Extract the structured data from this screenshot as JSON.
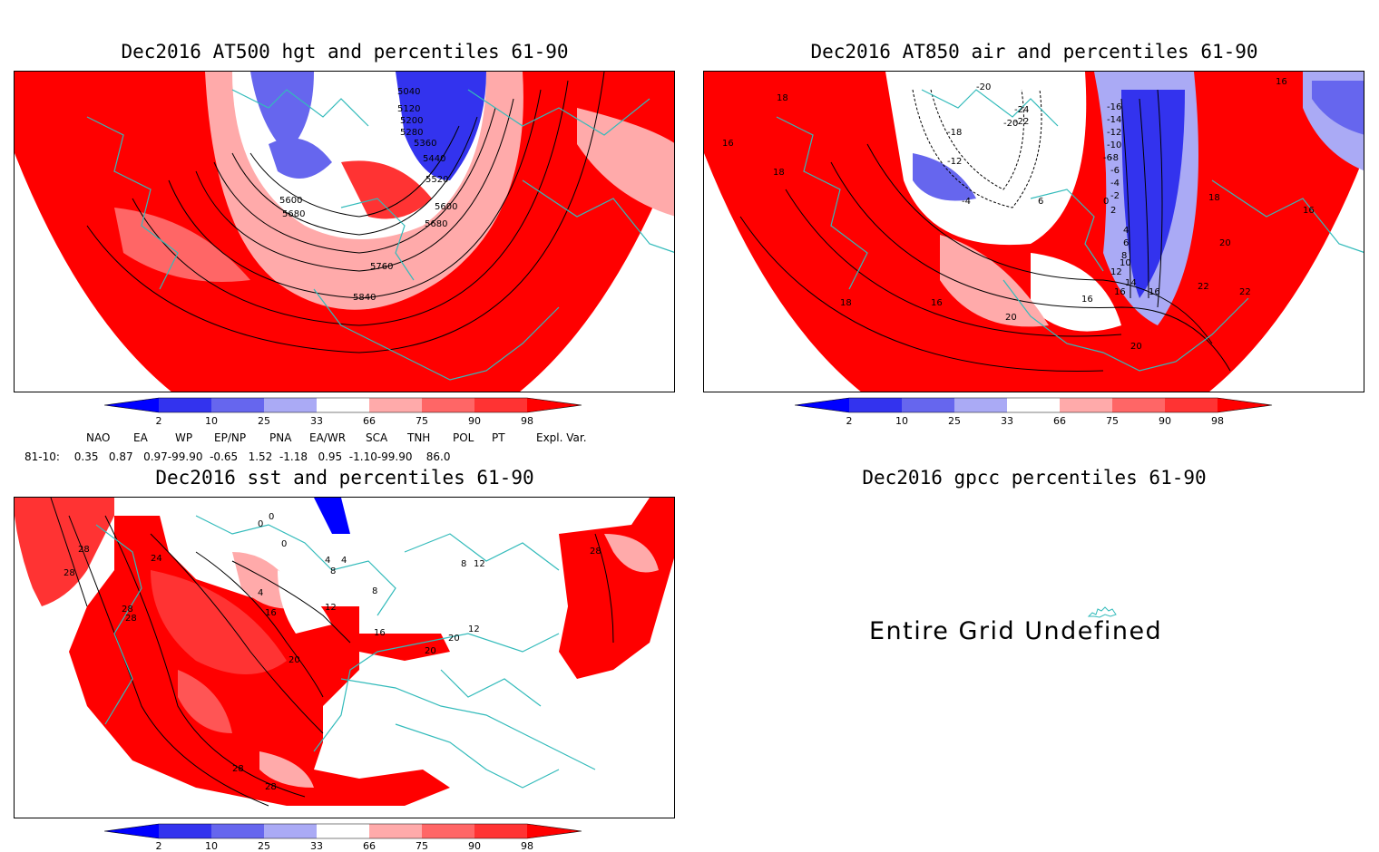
{
  "panels": [
    {
      "title": "Dec2016 AT500 hgt and percentiles 61-90",
      "contour_labels": [
        "5040",
        "5120",
        "5200",
        "5280",
        "5360",
        "5440",
        "5520",
        "5600",
        "5680",
        "5600",
        "5680",
        "5760",
        "5840"
      ]
    },
    {
      "title": "Dec2016 AT850 air and percentiles 61-90",
      "contour_labels": [
        "16",
        "18",
        "16",
        "18",
        "-18",
        "-20",
        "-24",
        "-22",
        "-20",
        "-16",
        "-14",
        "-12",
        "-10",
        "-8",
        "-6",
        "-4",
        "-2",
        "0",
        "2",
        "4",
        "6",
        "8",
        "10",
        "12",
        "14",
        "16",
        "18",
        "16",
        "20",
        "22",
        "22",
        "20",
        "16",
        "18",
        "20",
        "-12",
        "-6",
        "-4",
        "6",
        "16",
        "16"
      ]
    },
    {
      "title": "Dec2016 sst and percentiles 61-90",
      "contour_labels": [
        "28",
        "28",
        "24",
        "28",
        "28",
        "0",
        "0",
        "0",
        "4",
        "8",
        "4",
        "4",
        "12",
        "16",
        "20",
        "8",
        "16",
        "20",
        "28",
        "28",
        "28",
        "20",
        "12",
        "8",
        "12"
      ]
    },
    {
      "title": "Dec2016 gpcc percentiles 61-90",
      "message": "Entire Grid Undefined"
    }
  ],
  "colorbar": {
    "ticks": [
      "2",
      "10",
      "25",
      "33",
      "66",
      "75",
      "90",
      "98"
    ],
    "colors": [
      "#0000ff",
      "#3333ee",
      "#6666ee",
      "#aaaaf5",
      "#ffffff",
      "#ffaaaa",
      "#ff6666",
      "#ff3333",
      "#ff0000"
    ]
  },
  "indices": {
    "row_label": "81-10:",
    "headers": [
      "NAO",
      "EA",
      "WP",
      "EP/NP",
      "PNA",
      "EA/WR",
      "SCA",
      "TNH",
      "POL",
      "PT",
      "Expl. Var."
    ],
    "values": "0.35   0.87   0.97-99.90  -0.65   1.52  -1.18   0.95  -1.10-99.90    86.0"
  },
  "map_colors": {
    "red": "#ff0000",
    "mid_red": "#ff5555",
    "light_red": "#ffaaaa",
    "blue": "#3333ee",
    "light_blue": "#aaaaf5",
    "coast": "#33bbbb"
  }
}
